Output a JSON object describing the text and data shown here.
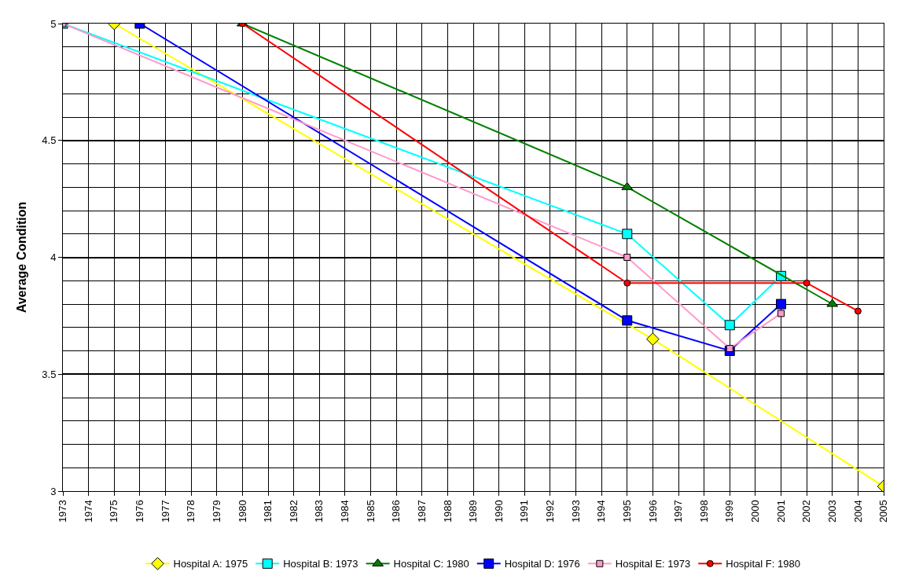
{
  "chart_data": {
    "type": "line",
    "ylabel": "Average Condition",
    "xlim": [
      1973,
      2005
    ],
    "xticks": [
      1973,
      1974,
      1975,
      1976,
      1977,
      1978,
      1979,
      1980,
      1981,
      1982,
      1983,
      1984,
      1985,
      1986,
      1987,
      1988,
      1989,
      1990,
      1991,
      1992,
      1993,
      1994,
      1995,
      1996,
      1997,
      1998,
      1999,
      2000,
      2001,
      2002,
      2003,
      2004,
      2005
    ],
    "ylim": [
      3,
      5
    ],
    "yticks": [
      3,
      3.5,
      4,
      4.5,
      5
    ],
    "grid": true,
    "legend": "bottom",
    "series": [
      {
        "name": "Hospital A: 1975",
        "color": "#ffff00",
        "marker": "diamond",
        "x": [
          1975,
          1996,
          2005
        ],
        "values": [
          5,
          3.65,
          3.02
        ]
      },
      {
        "name": "Hospital B: 1973",
        "color": "#00ffff",
        "marker": "square",
        "x": [
          1973,
          1995,
          1999,
          2001
        ],
        "values": [
          5,
          4.1,
          3.71,
          3.92
        ]
      },
      {
        "name": "Hospital C: 1980",
        "color": "#008000",
        "marker": "triangle",
        "x": [
          1980,
          1995,
          2003
        ],
        "values": [
          5,
          4.3,
          3.8
        ]
      },
      {
        "name": "Hospital D: 1976",
        "color": "#0000ff",
        "marker": "square",
        "x": [
          1976,
          1995,
          1999,
          2001
        ],
        "values": [
          5,
          3.73,
          3.6,
          3.8
        ]
      },
      {
        "name": "Hospital E: 1973",
        "color": "#ff99cc",
        "marker": "square",
        "x": [
          1973,
          1995,
          1999,
          2001
        ],
        "values": [
          5,
          4.0,
          3.61,
          3.76
        ]
      },
      {
        "name": "Hospital F: 1980",
        "color": "#ff0000",
        "marker": "circle",
        "x": [
          1980,
          1995,
          2002,
          2004
        ],
        "values": [
          5,
          3.89,
          3.89,
          3.77
        ]
      }
    ]
  }
}
